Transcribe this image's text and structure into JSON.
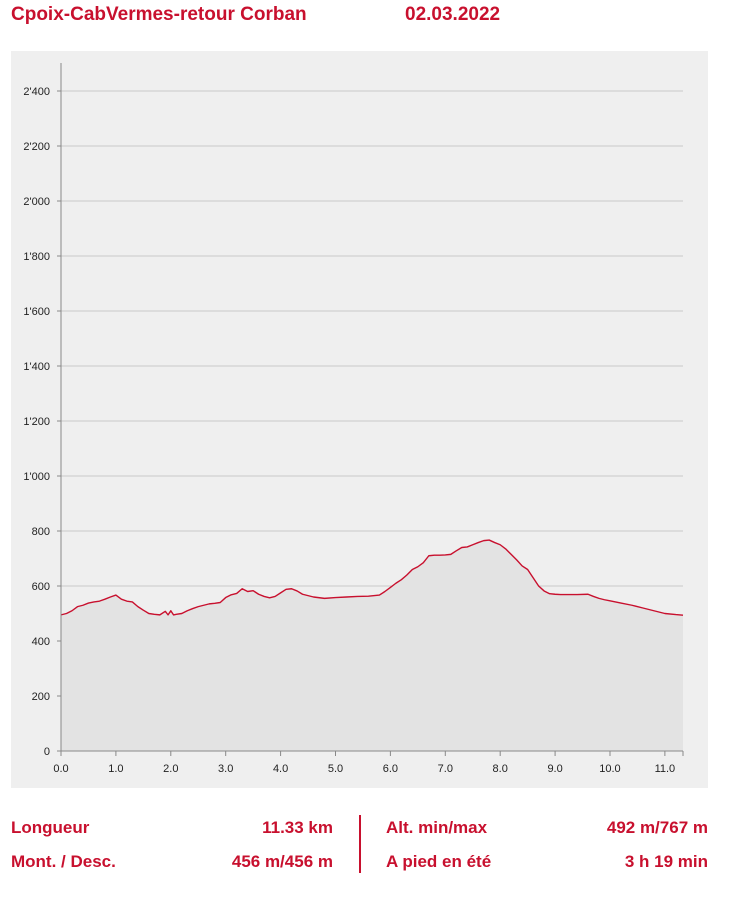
{
  "header": {
    "title": "Cpoix-CabVermes-retour Corban",
    "date": "02.03.2022"
  },
  "colors": {
    "accent": "#c8102e",
    "line": "#c8102e",
    "fill": "#e3e3e3",
    "panel": "#efefef",
    "grid": "#c8c8c8"
  },
  "chart_data": {
    "type": "area",
    "title": "",
    "xlabel": "",
    "ylabel": "",
    "xlim": [
      0,
      11.33
    ],
    "ylim": [
      0,
      2400
    ],
    "grid": true,
    "x_ticks": [
      0,
      1,
      2,
      3,
      4,
      5,
      6,
      7,
      8,
      9,
      10,
      11
    ],
    "x_tick_labels": [
      "0.0",
      "1.0",
      "2.0",
      "3.0",
      "4.0",
      "5.0",
      "6.0",
      "7.0",
      "8.0",
      "9.0",
      "10.0",
      "11.0"
    ],
    "y_ticks": [
      0,
      200,
      400,
      600,
      800,
      1000,
      1200,
      1400,
      1600,
      1800,
      2000,
      2200,
      2400
    ],
    "y_tick_labels": [
      "0",
      "200",
      "400",
      "600",
      "800",
      "1'000",
      "1'200",
      "1'400",
      "1'600",
      "1'800",
      "2'000",
      "2'200",
      "2'400"
    ],
    "series": [
      {
        "x": [
          0,
          0.1,
          0.2,
          0.3,
          0.4,
          0.5,
          0.6,
          0.7,
          0.8,
          0.9,
          1.0,
          1.1,
          1.2,
          1.3,
          1.4,
          1.5,
          1.6,
          1.7,
          1.8,
          1.9,
          1.95,
          2.0,
          2.05,
          2.1,
          2.2,
          2.3,
          2.4,
          2.5,
          2.6,
          2.7,
          2.8,
          2.9,
          3.0,
          3.1,
          3.2,
          3.3,
          3.4,
          3.5,
          3.6,
          3.7,
          3.8,
          3.9,
          4.0,
          4.1,
          4.2,
          4.3,
          4.4,
          4.5,
          4.6,
          4.8,
          5.0,
          5.2,
          5.4,
          5.6,
          5.8,
          5.9,
          6.0,
          6.1,
          6.2,
          6.3,
          6.4,
          6.5,
          6.6,
          6.7,
          6.8,
          6.9,
          7.0,
          7.1,
          7.2,
          7.3,
          7.4,
          7.5,
          7.6,
          7.7,
          7.8,
          7.9,
          8.0,
          8.1,
          8.2,
          8.3,
          8.4,
          8.5,
          8.6,
          8.7,
          8.8,
          8.9,
          9.0,
          9.1,
          9.2,
          9.4,
          9.6,
          9.7,
          9.8,
          9.9,
          10.0,
          10.2,
          10.4,
          10.6,
          10.8,
          11.0,
          11.2,
          11.33
        ],
        "y": [
          495,
          500,
          510,
          525,
          530,
          538,
          542,
          545,
          552,
          560,
          567,
          552,
          545,
          542,
          525,
          512,
          500,
          497,
          495,
          508,
          495,
          510,
          495,
          497,
          500,
          510,
          518,
          525,
          530,
          535,
          537,
          540,
          558,
          568,
          573,
          590,
          580,
          583,
          570,
          562,
          557,
          562,
          575,
          588,
          590,
          582,
          570,
          565,
          560,
          555,
          558,
          560,
          562,
          563,
          567,
          580,
          595,
          610,
          623,
          640,
          660,
          670,
          685,
          710,
          712,
          712,
          713,
          715,
          728,
          740,
          742,
          750,
          758,
          765,
          767,
          758,
          750,
          735,
          715,
          695,
          673,
          660,
          630,
          600,
          582,
          572,
          570,
          569,
          569,
          569,
          570,
          562,
          555,
          550,
          546,
          538,
          530,
          520,
          510,
          500,
          496,
          494
        ]
      }
    ]
  },
  "stats": {
    "length_label": "Longueur",
    "length_value": "11.33 km",
    "altitude_label": "Alt. min/max",
    "altitude_value": "492 m/767 m",
    "ascent_label": "Mont. / Desc.",
    "ascent_value": "456 m/456 m",
    "walk_label": "A pied en été",
    "walk_value": "3 h 19 min"
  }
}
